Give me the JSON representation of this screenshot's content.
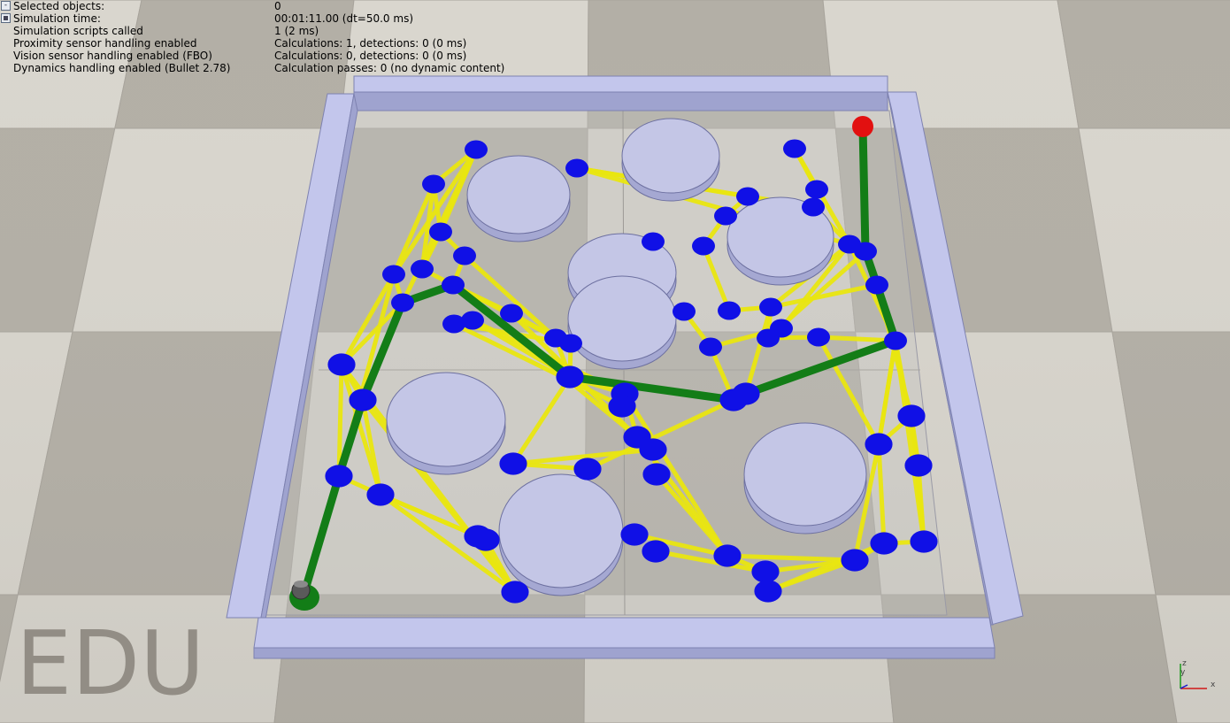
{
  "info_panel": {
    "rows": [
      {
        "label": "Selected objects:",
        "value": "0",
        "toggle": "-"
      },
      {
        "label": "Simulation time:",
        "value": "00:01:11.00 (dt=50.0 ms)",
        "toggle": "filled"
      },
      {
        "label": "Simulation scripts called",
        "value": "1 (2 ms)",
        "toggle": ""
      },
      {
        "label": "Proximity sensor handling enabled",
        "value": "Calculations: 1, detections: 0 (0 ms)",
        "toggle": ""
      },
      {
        "label": "Vision sensor handling enabled (FBO)",
        "value": "Calculations: 0, detections: 0 (0 ms)",
        "toggle": ""
      },
      {
        "label": "Dynamics handling enabled (Bullet 2.78)",
        "value": "Calculation passes: 0 (no dynamic content)",
        "toggle": ""
      }
    ]
  },
  "watermark": "EDU",
  "axes": {
    "x": "x",
    "y": "y",
    "z": "z"
  },
  "colors": {
    "floor_light": "#d9d6ce",
    "floor_dark": "#b3afa6",
    "wall_top": "#c3c6ec",
    "wall_side": "#9fa3cf",
    "obstacle_top": "#c4c6e6",
    "obstacle_side": "#a5a8d2",
    "node": "#1010e6",
    "roadmap_edge": "#e9e610",
    "path_edge": "#137d17",
    "goal": "#e21010",
    "robot": "#5a5a5a"
  },
  "icons": [
    "collapse-icon",
    "checkbox-icon",
    "axis-triad-icon"
  ]
}
